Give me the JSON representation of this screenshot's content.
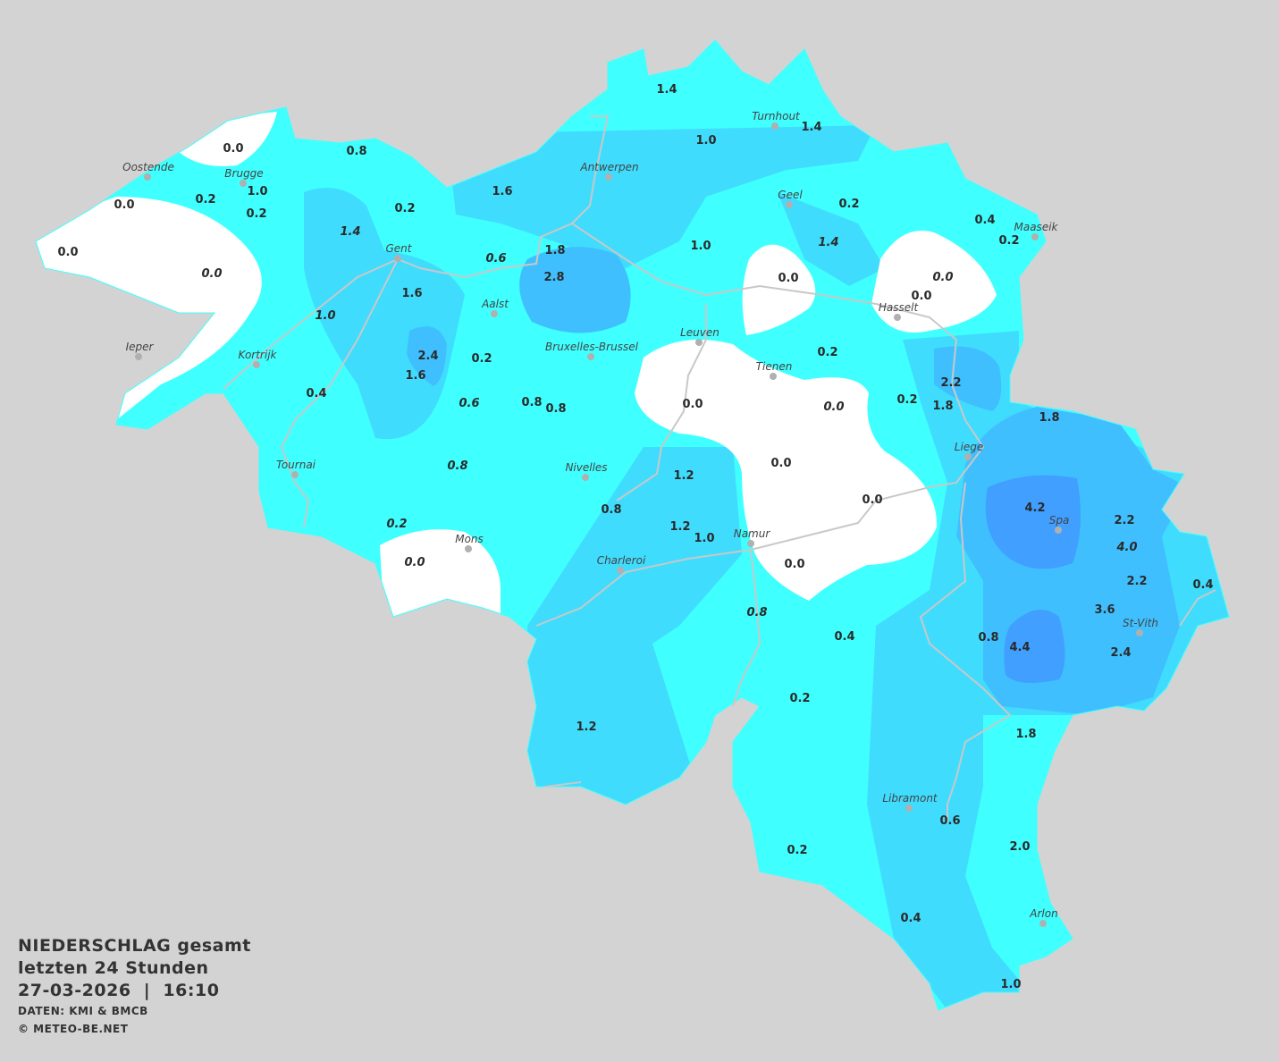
{
  "legend": {
    "title": "NIEDERSCHLAG gesamt",
    "subtitle": "letzten 24 Stunden",
    "datetime": "27-03-2026  |  16:10",
    "source": "DATEN: KMI & BMCB",
    "copyright": "© METEO-BE.NET"
  },
  "colors": {
    "background": "#d3d3d3",
    "zero": "#ffffff",
    "level1": "#40ffff",
    "level2": "#40dcfd",
    "level3": "#40bfff",
    "level4": "#409fff",
    "rivers": "#c8c8c8"
  },
  "cities": [
    "Oostende",
    "Brugge",
    "Gent",
    "Antwerpen",
    "Turnhout",
    "Geel",
    "Maaseik",
    "Hasselt",
    "Aalst",
    "Ieper",
    "Kortrijk",
    "Bruxelles-Brussel",
    "Leuven",
    "Tienen",
    "Liege",
    "Tournai",
    "Nivelles",
    "Spa",
    "Mons",
    "Namur",
    "Charleroi",
    "St-Vith",
    "Libramont",
    "Arlon"
  ],
  "values": [
    "0.0",
    "0.0",
    "0.0",
    "0.2",
    "1.0",
    "0.2",
    "0.8",
    "0.2",
    "1.4",
    "0.0",
    "1.6",
    "1.4",
    "1.0",
    "1.4",
    "0.2",
    "0.4",
    "0.2",
    "1.4",
    "1.0",
    "1.8",
    "2.8",
    "0.6",
    "1.6",
    "1.0",
    "0.0",
    "0.0",
    "0.0",
    "2.4",
    "1.6",
    "0.2",
    "0.4",
    "0.6",
    "0.8",
    "0.8",
    "0.0",
    "0.2",
    "0.0",
    "0.2",
    "2.2",
    "1.8",
    "1.8",
    "0.8",
    "1.2",
    "0.0",
    "0.0",
    "0.8",
    "1.2",
    "1.0",
    "0.2",
    "0.0",
    "0.0",
    "0.8",
    "0.4",
    "4.2",
    "2.2",
    "4.0",
    "2.2",
    "0.4",
    "3.6",
    "2.4",
    "0.8",
    "4.4",
    "0.2",
    "1.2",
    "1.8",
    "0.6",
    "2.0",
    "0.2",
    "0.4",
    "1.0"
  ]
}
